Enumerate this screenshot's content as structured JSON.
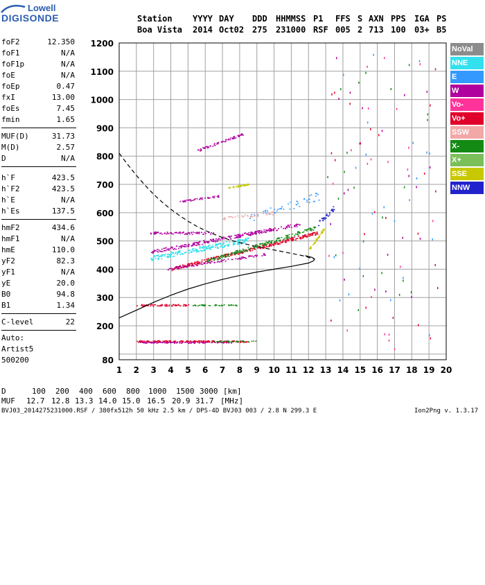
{
  "logo": {
    "brand_top": "Lowell",
    "brand_bottom": "DIGISONDE"
  },
  "header": {
    "labels": [
      "Station",
      "YYYY",
      "DAY",
      "DDD",
      "HHMMSS",
      "P1",
      "FFS",
      "S",
      "AXN",
      "PPS",
      "IGA",
      "PS"
    ],
    "values": [
      "Boa Vista",
      "2014",
      "Oct02",
      "275",
      "231000",
      "RSF",
      "005",
      "2",
      "713",
      "100",
      "03+",
      "B5"
    ]
  },
  "params_group1": [
    {
      "label": "foF2",
      "value": "12.350"
    },
    {
      "label": "foF1",
      "value": "N/A"
    },
    {
      "label": "foF1p",
      "value": "N/A"
    },
    {
      "label": "foE",
      "value": "N/A"
    },
    {
      "label": "foEp",
      "value": "0.47"
    },
    {
      "label": "fxI",
      "value": "13.00"
    },
    {
      "label": "foEs",
      "value": "7.45"
    },
    {
      "label": "fmin",
      "value": "1.65"
    }
  ],
  "params_group2": [
    {
      "label": "MUF(D)",
      "value": "31.73"
    },
    {
      "label": "M(D)",
      "value": "2.57"
    },
    {
      "label": "D",
      "value": "N/A"
    }
  ],
  "params_group3": [
    {
      "label": "h`F",
      "value": "423.5"
    },
    {
      "label": "h`F2",
      "value": "423.5"
    },
    {
      "label": "h`E",
      "value": "N/A"
    },
    {
      "label": "h`Es",
      "value": "137.5"
    }
  ],
  "params_group4": [
    {
      "label": "hmF2",
      "value": "434.6"
    },
    {
      "label": "hmF1",
      "value": "N/A"
    },
    {
      "label": "hmE",
      "value": "110.0"
    },
    {
      "label": "yF2",
      "value": "82.3"
    },
    {
      "label": "yF1",
      "value": "N/A"
    },
    {
      "label": "yE",
      "value": "20.0"
    },
    {
      "label": "B0",
      "value": "94.8"
    },
    {
      "label": "B1",
      "value": "1.34"
    }
  ],
  "params_group5": [
    {
      "label": "C-level",
      "value": "22"
    }
  ],
  "auto": {
    "line1": "Auto:",
    "line2": "Artist5",
    "line3": "500200"
  },
  "legend": [
    {
      "label": "NoVal",
      "color": "#8c8c8c"
    },
    {
      "label": "NNE",
      "color": "#33e0ee"
    },
    {
      "label": "E",
      "color": "#3399ff"
    },
    {
      "label": "W",
      "color": "#b0009e"
    },
    {
      "label": "Vo-",
      "color": "#ff3399"
    },
    {
      "label": "Vo+",
      "color": "#e0002a"
    },
    {
      "label": "SSW",
      "color": "#f3a8a8"
    },
    {
      "label": "X-",
      "color": "#138a13"
    },
    {
      "label": "X+",
      "color": "#7abf5a"
    },
    {
      "label": "SSE",
      "color": "#c8c800"
    },
    {
      "label": "NNW",
      "color": "#2222cc"
    }
  ],
  "footer": {
    "d_label": "D",
    "d_values": [
      "100",
      "200",
      "400",
      "600",
      "800",
      "1000",
      "1500",
      "3000",
      "[km]"
    ],
    "muf_label": "MUF",
    "muf_values": [
      "12.7",
      "12.8",
      "13.3",
      "14.0",
      "15.0",
      "16.5",
      "20.9",
      "31.7",
      "[MHz]"
    ],
    "file_info": "BVJ03_2014275231000.RSF / 380fx512h 50 kHz 2.5 km / DPS-4D BVJ03 003 / 2.8 N 299.3 E",
    "version": "Ion2Png v. 1.3.17"
  },
  "chart_data": {
    "type": "scatter",
    "xlim": [
      1,
      20
    ],
    "ylim": [
      80,
      1200
    ],
    "x_ticks": [
      1,
      2,
      3,
      4,
      5,
      6,
      7,
      8,
      9,
      10,
      11,
      12,
      13,
      14,
      15,
      16,
      17,
      18,
      19,
      20
    ],
    "y_ticks": [
      80,
      100,
      200,
      300,
      400,
      500,
      600,
      700,
      800,
      900,
      1000,
      1100,
      1200
    ],
    "y_labeled_ticks": [
      80,
      200,
      300,
      400,
      500,
      600,
      700,
      800,
      900,
      1000,
      1100,
      1200
    ],
    "grid": true,
    "legend_position": "right",
    "traces": [
      {
        "color": "#b0009e",
        "x_range": [
          2.8,
          11.5
        ],
        "h_range": [
          462,
          560
        ],
        "count": 260,
        "spread": 6
      },
      {
        "color": "#33e0ee",
        "x_range": [
          2.8,
          8.5
        ],
        "h_range": [
          440,
          505
        ],
        "count": 220,
        "spread": 9
      },
      {
        "color": "#e0002a",
        "x_range": [
          4.0,
          12.5
        ],
        "h_range": [
          402,
          530
        ],
        "count": 300,
        "spread": 6
      },
      {
        "color": "#138a13",
        "x_range": [
          6.0,
          12.5
        ],
        "h_range": [
          428,
          550
        ],
        "count": 160,
        "spread": 6
      },
      {
        "color": "#b0009e",
        "x_range": [
          3.8,
          9.5
        ],
        "h_range": [
          402,
          455
        ],
        "count": 90,
        "spread": 4
      },
      {
        "color": "#b0009e",
        "x_range": [
          2.8,
          6.5
        ],
        "h_range": [
          530,
          528
        ],
        "count": 70,
        "spread": 4
      },
      {
        "color": "#b0009e",
        "x_range": [
          5.5,
          8.2
        ],
        "h_range": [
          820,
          880
        ],
        "count": 60,
        "spread": 4
      },
      {
        "color": "#b0009e",
        "x_range": [
          4.5,
          6.8
        ],
        "h_range": [
          640,
          660
        ],
        "count": 40,
        "spread": 3
      },
      {
        "color": "#c8c800",
        "x_range": [
          7.3,
          8.5
        ],
        "h_range": [
          688,
          702
        ],
        "count": 40,
        "spread": 3
      },
      {
        "color": "#c8c800",
        "x_range": [
          12.0,
          12.9
        ],
        "h_range": [
          470,
          545
        ],
        "count": 40,
        "spread": 5
      },
      {
        "color": "#3399ff",
        "x_range": [
          8.5,
          12.6
        ],
        "h_range": [
          580,
          660
        ],
        "count": 50,
        "spread": 15
      },
      {
        "color": "#f3a8a8",
        "x_range": [
          7.0,
          10.0
        ],
        "h_range": [
          580,
          600
        ],
        "count": 40,
        "spread": 6
      },
      {
        "color": "#e0002a",
        "x_range": [
          2.0,
          8.5
        ],
        "h_range": [
          146,
          146
        ],
        "count": 180,
        "spread": 3
      },
      {
        "color": "#b0009e",
        "x_range": [
          2.0,
          7.5
        ],
        "h_range": [
          142,
          142
        ],
        "count": 80,
        "spread": 2
      },
      {
        "color": "#138a13",
        "x_range": [
          6.5,
          9.0
        ],
        "h_range": [
          146,
          146
        ],
        "count": 30,
        "spread": 2
      },
      {
        "color": "#e0002a",
        "x_range": [
          2.0,
          5.0
        ],
        "h_range": [
          274,
          274
        ],
        "count": 60,
        "spread": 3
      },
      {
        "color": "#138a13",
        "x_range": [
          5.2,
          7.8
        ],
        "h_range": [
          274,
          274
        ],
        "count": 40,
        "spread": 2
      },
      {
        "color": "#2222cc",
        "x_range": [
          12.5,
          13.5
        ],
        "h_range": [
          560,
          620
        ],
        "count": 30,
        "spread": 8
      }
    ],
    "scatter_noise": {
      "x_range": [
        13,
        19.5
      ],
      "h_range": [
        120,
        1180
      ],
      "count": 110
    },
    "profile_solid": {
      "x": [
        1.0,
        2.0,
        3.0,
        4.0,
        5.0,
        6.0,
        7.0,
        8.0,
        9.0,
        10.0,
        11.0,
        12.0,
        12.3,
        12.35,
        12.2,
        11.8
      ],
      "h": [
        228,
        255,
        283,
        308,
        330,
        348,
        364,
        378,
        390,
        400,
        410,
        422,
        430,
        436,
        442,
        448
      ]
    },
    "profile_dashed": {
      "x": [
        1.0,
        1.5,
        2.0,
        2.5,
        3.0,
        3.5,
        4.0,
        4.5,
        5.0,
        5.5,
        6.0,
        6.5,
        7.0,
        7.5,
        8.0,
        8.5,
        9.0,
        9.5,
        10.0,
        10.5,
        11.0,
        11.5,
        11.8,
        12.0,
        12.2,
        12.35
      ],
      "h": [
        810,
        770,
        732,
        697,
        665,
        637,
        612,
        590,
        570,
        552,
        537,
        524,
        512,
        502,
        494,
        487,
        480,
        474,
        468,
        462,
        456,
        450,
        446,
        442,
        438,
        436
      ]
    }
  }
}
